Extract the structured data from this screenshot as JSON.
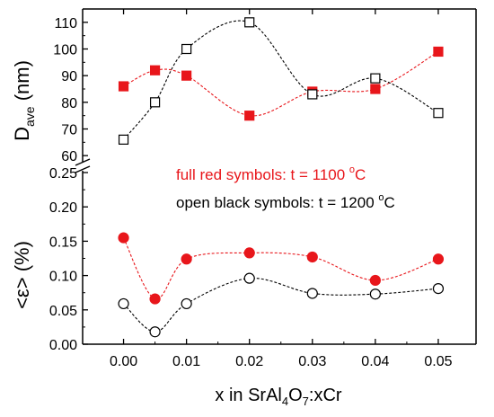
{
  "chart_data": {
    "type": "scatter",
    "x_ticks": [
      "0.00",
      "0.01",
      "0.02",
      "0.03",
      "0.04",
      "0.05"
    ],
    "xlim": [
      -0.0065,
      0.056
    ],
    "xlabel": {
      "pre": "x in SrAl",
      "sub1": "4",
      "mid": "O",
      "sub2": "7",
      "post": ":xCr"
    },
    "top_panel": {
      "ylabel": {
        "main": "D",
        "sub": "ave",
        "unit": " (nm)"
      },
      "ylim": [
        55,
        115
      ],
      "y_ticks": [
        "60",
        "70",
        "80",
        "90",
        "100",
        "110"
      ],
      "series": [
        {
          "name": "t = 1100 °C",
          "marker": "filled-square",
          "color": "#e8161b",
          "x": [
            0.0,
            0.005,
            0.01,
            0.02,
            0.03,
            0.04,
            0.05
          ],
          "y": [
            86,
            92,
            90,
            75,
            84,
            85,
            99
          ]
        },
        {
          "name": "t = 1200 °C",
          "marker": "open-square",
          "color": "#000000",
          "x": [
            0.0,
            0.005,
            0.01,
            0.02,
            0.03,
            0.04,
            0.05
          ],
          "y": [
            66,
            80,
            100,
            110,
            83,
            89,
            76
          ]
        }
      ]
    },
    "bottom_panel": {
      "ylabel": {
        "main": "<ε>",
        "unit": " (%)"
      },
      "ylim": [
        0.0,
        0.25
      ],
      "y_ticks": [
        "0.00",
        "0.05",
        "0.10",
        "0.15",
        "0.20",
        "0.25"
      ],
      "series": [
        {
          "name": "t = 1100 °C",
          "marker": "filled-circle",
          "color": "#e8161b",
          "x": [
            0.0,
            0.005,
            0.01,
            0.02,
            0.03,
            0.04,
            0.05
          ],
          "y": [
            0.155,
            0.066,
            0.124,
            0.133,
            0.127,
            0.093,
            0.124
          ]
        },
        {
          "name": "t = 1200 °C",
          "marker": "open-circle",
          "color": "#000000",
          "x": [
            0.0,
            0.005,
            0.01,
            0.02,
            0.03,
            0.04,
            0.05
          ],
          "y": [
            0.059,
            0.018,
            0.059,
            0.096,
            0.074,
            0.073,
            0.081
          ]
        }
      ]
    },
    "annotations": [
      {
        "pre": "full red symbols: t = 1100 ",
        "sup": "o",
        "post": "C",
        "color": "#e8161b"
      },
      {
        "pre": "open black symbols: t = 1200 ",
        "sup": "o",
        "post": "C",
        "color": "#000000"
      }
    ],
    "fit_curves": "dashed smooth curves through each series",
    "axis_break": true,
    "grid": false
  }
}
